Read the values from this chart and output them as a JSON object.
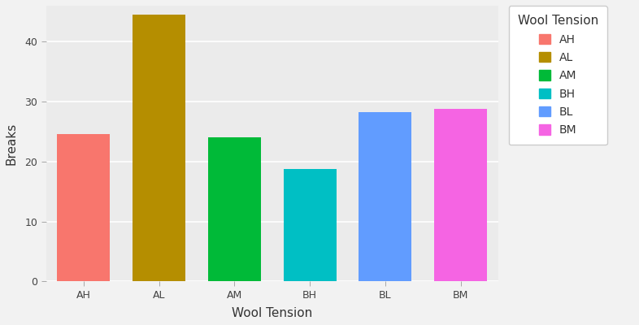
{
  "categories": [
    "AH",
    "AL",
    "AM",
    "BH",
    "BL",
    "BM"
  ],
  "values": [
    24.56,
    44.56,
    24.0,
    18.78,
    28.22,
    28.78
  ],
  "bar_colors": [
    "#F8766D",
    "#B58E00",
    "#00BA38",
    "#00BFC4",
    "#619CFF",
    "#F564E3"
  ],
  "legend_title": "Wool Tension",
  "xlabel": "Wool Tension",
  "ylabel": "Breaks",
  "ylim": [
    0,
    46
  ],
  "yticks": [
    0,
    10,
    20,
    30,
    40
  ],
  "plot_bg_color": "#EBEBEB",
  "outer_bg_color": "#F2F2F2",
  "grid_color": "#FFFFFF",
  "legend_bg_color": "#FFFFFF",
  "title_fontsize": 11,
  "axis_label_fontsize": 11,
  "tick_fontsize": 9,
  "legend_fontsize": 10,
  "legend_title_fontsize": 11
}
